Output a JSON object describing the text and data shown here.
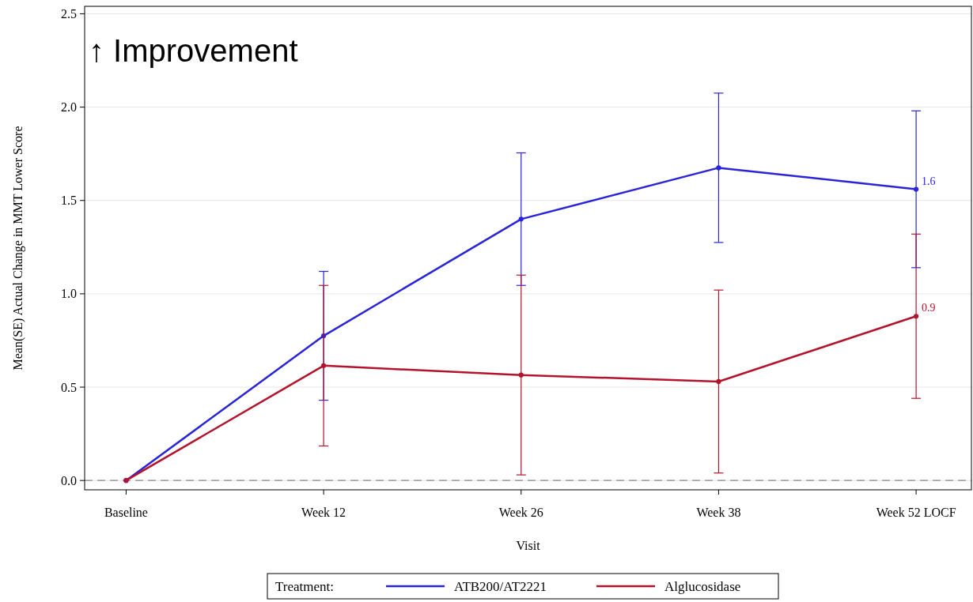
{
  "chart_data": {
    "type": "line",
    "xlabel": "Visit",
    "ylabel": "Mean(SE) Actual Change in MMT Lower Score",
    "legend_title": "Treatment:",
    "categories": [
      "Baseline",
      "Week 12",
      "Week 26",
      "Week 38",
      "Week 52 LOCF"
    ],
    "ylim": [
      -0.05,
      2.54
    ],
    "yticks": [
      {
        "value": 0,
        "label": "0.0"
      },
      {
        "value": 0.5,
        "label": "0.5"
      },
      {
        "value": 1,
        "label": "1.0"
      },
      {
        "value": 1.5,
        "label": "1.5"
      },
      {
        "value": 2,
        "label": "2.0"
      },
      {
        "value": 2.5,
        "label": "2.5"
      }
    ],
    "series": [
      {
        "name": "ATB200/AT2221",
        "color": "#2a24d9",
        "values": [
          0,
          0.775,
          1.4,
          1.675,
          1.56
        ],
        "errors": [
          null,
          0.345,
          0.355,
          0.4,
          0.42
        ],
        "value_labels": [
          null,
          null,
          null,
          null,
          "1.6"
        ]
      },
      {
        "name": "Alglucosidase",
        "color": "#b3142c",
        "values": [
          0,
          0.615,
          0.565,
          0.53,
          0.88
        ],
        "errors": [
          null,
          0.43,
          0.535,
          0.49,
          0.44
        ],
        "value_labels": [
          null,
          null,
          null,
          null,
          "0.9"
        ]
      }
    ],
    "ref_lines": [
      {
        "axis": "y",
        "value": 0,
        "color": "#888888",
        "line_style": "dashed"
      }
    ],
    "annotations": [
      "↑ Improvement"
    ],
    "grid": "y",
    "legend": "bottom",
    "marker": "circle",
    "line_style": "solid"
  }
}
